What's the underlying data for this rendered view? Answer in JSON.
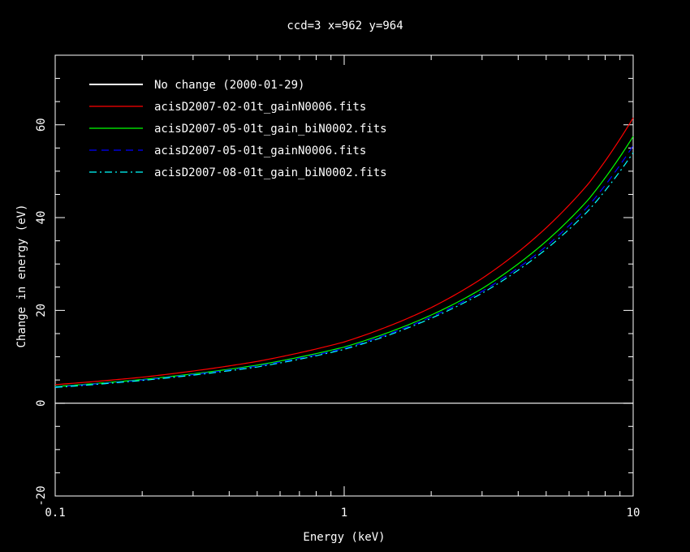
{
  "chart_data": {
    "type": "line",
    "title": "ccd=3 x=962 y=964",
    "xlabel": "Energy (keV)",
    "ylabel": "Change in energy (eV)",
    "x_scale": "log",
    "xlim": [
      0.1,
      10
    ],
    "ylim": [
      -20,
      75
    ],
    "xticks": [
      0.1,
      1,
      10
    ],
    "xtick_labels": [
      "0.1",
      "1",
      "10"
    ],
    "yticks": [
      -20,
      0,
      20,
      40,
      60
    ],
    "ytick_labels": [
      "-20",
      "0",
      "20",
      "40",
      "60"
    ],
    "grid": false,
    "legend_position": "top-left",
    "series": [
      {
        "name": "No change (2000-01-29)",
        "color": "#ffffff",
        "dash": "solid",
        "x": [
          0.1,
          0.2,
          0.5,
          1,
          2,
          3,
          5,
          7,
          10
        ],
        "y": [
          0,
          0,
          0,
          0,
          0,
          0,
          0,
          0,
          0
        ]
      },
      {
        "name": "acisD2007-02-01t_gainN0006.fits",
        "color": "#ff0000",
        "dash": "solid",
        "x": [
          0.1,
          0.2,
          0.5,
          1,
          2,
          3,
          5,
          7,
          10
        ],
        "y": [
          4.0,
          5.6,
          9.0,
          13.2,
          20.6,
          26.9,
          37.8,
          47.3,
          61.5
        ]
      },
      {
        "name": "acisD2007-05-01t_gain_biN0002.fits",
        "color": "#00ff00",
        "dash": "solid",
        "x": [
          0.1,
          0.2,
          0.5,
          1,
          2,
          3,
          5,
          7,
          10
        ],
        "y": [
          3.6,
          5.1,
          8.2,
          12.1,
          19.0,
          24.7,
          34.9,
          43.9,
          57.5
        ]
      },
      {
        "name": "acisD2007-05-01t_gainN0006.fits",
        "color": "#0000ff",
        "dash": "dashed",
        "x": [
          0.1,
          0.2,
          0.5,
          1,
          2,
          3,
          5,
          7,
          10
        ],
        "y": [
          3.5,
          5.0,
          8.0,
          11.8,
          18.6,
          24.1,
          33.8,
          42.5,
          55.5
        ]
      },
      {
        "name": "acisD2007-08-01t_gain_biN0002.fits",
        "color": "#00ffff",
        "dash": "dash-dot",
        "x": [
          0.1,
          0.2,
          0.5,
          1,
          2,
          3,
          5,
          7,
          10
        ],
        "y": [
          3.4,
          4.9,
          7.8,
          11.6,
          18.3,
          23.7,
          33.2,
          41.5,
          54.0
        ]
      }
    ]
  }
}
